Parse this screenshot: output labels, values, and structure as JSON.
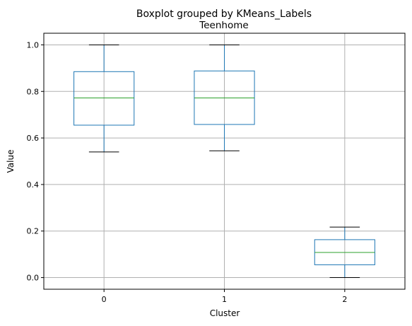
{
  "chart_data": {
    "type": "boxplot",
    "suptitle": "Boxplot grouped by KMeans_Labels",
    "title": "Teenhome",
    "xlabel": "Cluster",
    "ylabel": "Value",
    "categories": [
      "0",
      "1",
      "2"
    ],
    "ylim": [
      -0.05,
      1.05
    ],
    "yticks": [
      0.0,
      0.2,
      0.4,
      0.6,
      0.8,
      1.0
    ],
    "ytick_labels": [
      "0.0",
      "0.2",
      "0.4",
      "0.6",
      "0.8",
      "1.0"
    ],
    "grid": true,
    "colors": {
      "box": "#1f77b4",
      "median": "#2ca02c",
      "whisker_cap": "#000000",
      "grid": "#b0b0b0"
    },
    "boxes": [
      {
        "category": "0",
        "whisker_low": 0.54,
        "q1": 0.655,
        "median": 0.772,
        "q3": 0.885,
        "whisker_high": 1.0
      },
      {
        "category": "1",
        "whisker_low": 0.545,
        "q1": 0.658,
        "median": 0.772,
        "q3": 0.888,
        "whisker_high": 1.0
      },
      {
        "category": "2",
        "whisker_low": 0.0,
        "q1": 0.055,
        "median": 0.108,
        "q3": 0.163,
        "whisker_high": 0.217
      }
    ]
  }
}
